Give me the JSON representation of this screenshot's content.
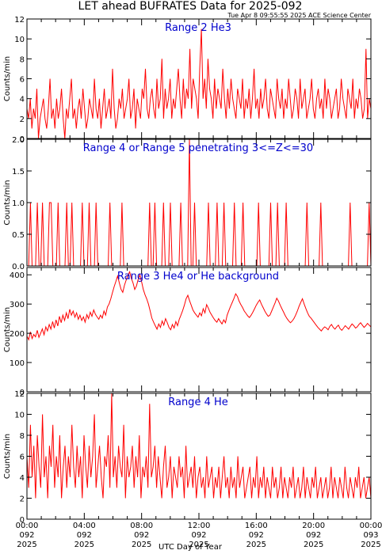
{
  "header": {
    "title": "LET ahead BUFRATES Data for 2025-092",
    "timestamp": "Tue Apr  8 09:55:55 2025 ACE Science Center"
  },
  "colors": {
    "trace": "#ff0000",
    "panel_label": "#0000cc",
    "axes": "#000000"
  },
  "x_axis": {
    "title": "UTC Day of Year",
    "ticks": [
      {
        "hours": 0,
        "time": "00:00",
        "day": "092",
        "year": "2025"
      },
      {
        "hours": 4,
        "time": "04:00",
        "day": "092",
        "year": "2025"
      },
      {
        "hours": 8,
        "time": "08:00",
        "day": "092",
        "year": "2025"
      },
      {
        "hours": 12,
        "time": "12:00",
        "day": "092",
        "year": "2025"
      },
      {
        "hours": 16,
        "time": "16:00",
        "day": "092",
        "year": "2025"
      },
      {
        "hours": 20,
        "time": "20:00",
        "day": "092",
        "year": "2025"
      },
      {
        "hours": 24,
        "time": "00:00",
        "day": "093",
        "year": "2025"
      }
    ]
  },
  "chart_data": [
    {
      "type": "line",
      "title": "Range 2 He3",
      "ylabel": "Counts/min",
      "ylim": [
        0,
        12
      ],
      "yticks": [
        0,
        2,
        4,
        6,
        8,
        10,
        12
      ],
      "ytick_format": "int",
      "xlim_hours": [
        0,
        24
      ],
      "series": [
        {
          "values": [
            3,
            2,
            4,
            1,
            3,
            2,
            5,
            0,
            2,
            3,
            4,
            2,
            1,
            3,
            6,
            2,
            3,
            1,
            4,
            2,
            3,
            5,
            2,
            0,
            3,
            2,
            4,
            6,
            2,
            3,
            1,
            3,
            4,
            2,
            5,
            3,
            1,
            2,
            4,
            3,
            2,
            6,
            3,
            2,
            4,
            1,
            3,
            5,
            2,
            3,
            4,
            2,
            7,
            3,
            1,
            2,
            4,
            3,
            5,
            2,
            3,
            4,
            6,
            2,
            3,
            5,
            1,
            4,
            3,
            2,
            5,
            4,
            7,
            3,
            2,
            4,
            5,
            3,
            2,
            6,
            3,
            4,
            8,
            2,
            5,
            3,
            4,
            6,
            2,
            4,
            3,
            5,
            7,
            4,
            2,
            6,
            3,
            5,
            4,
            9,
            3,
            6,
            5,
            4,
            2,
            7,
            11,
            4,
            6,
            3,
            8,
            5,
            4,
            2,
            6,
            3,
            5,
            4,
            3,
            7,
            4,
            2,
            5,
            3,
            6,
            4,
            3,
            2,
            5,
            4,
            3,
            6,
            2,
            4,
            3,
            5,
            2,
            4,
            7,
            3,
            4,
            2,
            5,
            3,
            4,
            6,
            3,
            2,
            5,
            4,
            3,
            2,
            6,
            4,
            3,
            5,
            2,
            4,
            3,
            6,
            4,
            2,
            3,
            5,
            4,
            2,
            6,
            3,
            4,
            5,
            2,
            3,
            4,
            6,
            3,
            2,
            4,
            5,
            3,
            4,
            2,
            6,
            3,
            5,
            4,
            2,
            3,
            4,
            5,
            2,
            3,
            6,
            4,
            3,
            2,
            5,
            4,
            3,
            6,
            2,
            4,
            3,
            5,
            4,
            2,
            3,
            9,
            2,
            4,
            3
          ]
        }
      ]
    },
    {
      "type": "line",
      "title": "Range 4 or Range 5 penetrating 3<=Z<=30",
      "ylabel": "Counts/min",
      "ylim": [
        0,
        2
      ],
      "yticks": [
        0,
        0.5,
        1,
        1.5,
        2
      ],
      "ytick_format": "one_decimal",
      "xlim_hours": [
        0,
        24
      ],
      "series": [
        {
          "values": [
            0,
            0,
            1,
            0,
            0,
            0,
            1,
            0,
            0,
            1,
            0,
            0,
            0,
            1,
            1,
            0,
            0,
            0,
            1,
            0,
            0,
            0,
            0,
            1,
            0,
            0,
            1,
            0,
            0,
            0,
            0,
            0,
            1,
            0,
            0,
            0,
            1,
            0,
            0,
            0,
            1,
            0,
            0,
            0,
            0,
            0,
            0,
            0,
            1,
            0,
            0,
            0,
            0,
            0,
            0,
            1,
            0,
            0,
            0,
            0,
            0,
            0,
            0,
            0,
            0,
            0,
            0,
            0,
            0,
            0,
            0,
            1,
            0,
            0,
            1,
            0,
            0,
            0,
            0,
            1,
            0,
            0,
            0,
            1,
            0,
            0,
            0,
            0,
            0,
            1,
            0,
            0,
            0,
            0,
            2,
            0,
            0,
            1,
            0,
            0,
            0,
            0,
            0,
            0,
            0,
            1,
            0,
            0,
            0,
            0,
            1,
            0,
            0,
            0,
            1,
            0,
            0,
            0,
            0,
            0,
            1,
            0,
            0,
            0,
            0,
            1,
            0,
            0,
            0,
            0,
            0,
            0,
            0,
            0,
            1,
            0,
            0,
            0,
            0,
            0,
            0,
            1,
            0,
            0,
            0,
            1,
            0,
            0,
            0,
            0,
            1,
            0,
            0,
            0,
            0,
            0,
            0,
            0,
            0,
            0,
            0,
            0,
            1,
            0,
            0,
            0,
            0,
            0,
            0,
            0,
            1,
            0,
            0,
            0,
            0,
            0,
            0,
            0,
            0,
            0,
            0,
            0,
            0,
            0,
            0,
            0,
            0,
            1,
            0,
            0,
            0,
            0,
            0,
            0,
            0,
            0,
            0,
            0,
            1,
            0
          ]
        }
      ]
    },
    {
      "type": "line",
      "title": "Range 3 He4 or He background",
      "ylabel": "Counts/min",
      "ylim": [
        0,
        425
      ],
      "yticks": [
        0,
        100,
        200,
        300,
        400
      ],
      "ytick_format": "int",
      "xlim_hours": [
        0,
        24
      ],
      "series": [
        {
          "values": [
            190,
            178,
            205,
            182,
            196,
            188,
            210,
            186,
            200,
            215,
            195,
            222,
            208,
            230,
            214,
            240,
            218,
            246,
            225,
            258,
            236,
            262,
            244,
            270,
            250,
            282,
            262,
            276,
            255,
            270,
            248,
            262,
            244,
            256,
            238,
            264,
            250,
            272,
            258,
            280,
            265,
            256,
            248,
            262,
            252,
            276,
            262,
            290,
            300,
            318,
            340,
            360,
            378,
            396,
            372,
            350,
            340,
            365,
            382,
            398,
            410,
            388,
            372,
            350,
            362,
            384,
            400,
            376,
            350,
            332,
            318,
            300,
            276,
            252,
            238,
            226,
            214,
            232,
            220,
            242,
            228,
            250,
            236,
            220,
            212,
            230,
            218,
            240,
            226,
            248,
            262,
            278,
            296,
            318,
            330,
            312,
            296,
            280,
            270,
            262,
            255,
            270,
            260,
            284,
            270,
            298,
            286,
            272,
            262,
            252,
            244,
            238,
            250,
            240,
            232,
            246,
            236,
            262,
            278,
            292,
            306,
            320,
            335,
            326,
            310,
            298,
            288,
            276,
            268,
            260,
            254,
            262,
            272,
            284,
            296,
            306,
            314,
            300,
            288,
            276,
            266,
            258,
            262,
            276,
            290,
            304,
            320,
            310,
            296,
            284,
            272,
            260,
            250,
            242,
            236,
            242,
            250,
            262,
            276,
            292,
            306,
            318,
            300,
            284,
            270,
            258,
            252,
            244,
            236,
            228,
            220,
            214,
            208,
            216,
            222,
            218,
            212,
            224,
            230,
            220,
            214,
            222,
            228,
            216,
            210,
            218,
            226,
            220,
            214,
            224,
            232,
            226,
            218,
            222,
            230,
            236,
            228,
            220,
            226,
            234,
            228,
            222
          ]
        }
      ]
    },
    {
      "type": "line",
      "title": "Range 4 He",
      "ylabel": "Counts/min",
      "ylim": [
        0,
        12
      ],
      "yticks": [
        0,
        2,
        4,
        6,
        8,
        10,
        12
      ],
      "ytick_format": "int",
      "xlim_hours": [
        0,
        24
      ],
      "series": [
        {
          "values": [
            6,
            3,
            9,
            4,
            7,
            2,
            8,
            5,
            3,
            10,
            4,
            6,
            2,
            7,
            5,
            9,
            3,
            6,
            4,
            8,
            2,
            5,
            7,
            3,
            6,
            4,
            9,
            5,
            3,
            7,
            4,
            6,
            2,
            8,
            5,
            3,
            7,
            4,
            6,
            10,
            3,
            5,
            7,
            4,
            2,
            6,
            5,
            8,
            3,
            12,
            4,
            6,
            3,
            7,
            5,
            4,
            9,
            2,
            6,
            4,
            5,
            7,
            3,
            6,
            4,
            8,
            2,
            5,
            4,
            6,
            3,
            11,
            4,
            5,
            7,
            3,
            6,
            4,
            2,
            5,
            7,
            3,
            4,
            6,
            2,
            5,
            4,
            3,
            6,
            4,
            5,
            2,
            7,
            3,
            4,
            5,
            3,
            6,
            2,
            4,
            5,
            3,
            4,
            2,
            6,
            3,
            4,
            5,
            2,
            4,
            3,
            5,
            2,
            4,
            6,
            3,
            4,
            2,
            5,
            3,
            4,
            2,
            6,
            3,
            4,
            5,
            2,
            3,
            4,
            5,
            2,
            4,
            3,
            6,
            2,
            4,
            3,
            5,
            2,
            4,
            3,
            2,
            5,
            3,
            4,
            2,
            3,
            5,
            2,
            4,
            3,
            2,
            4,
            3,
            5,
            2,
            3,
            4,
            2,
            3,
            5,
            2,
            4,
            3,
            2,
            4,
            3,
            5,
            2,
            3,
            4,
            2,
            3,
            4,
            2,
            3,
            5,
            2,
            4,
            3,
            2,
            4,
            3,
            2,
            5,
            3,
            2,
            4,
            3,
            2,
            4,
            3,
            5,
            2,
            3,
            4,
            2,
            3,
            4,
            2
          ]
        }
      ]
    }
  ]
}
